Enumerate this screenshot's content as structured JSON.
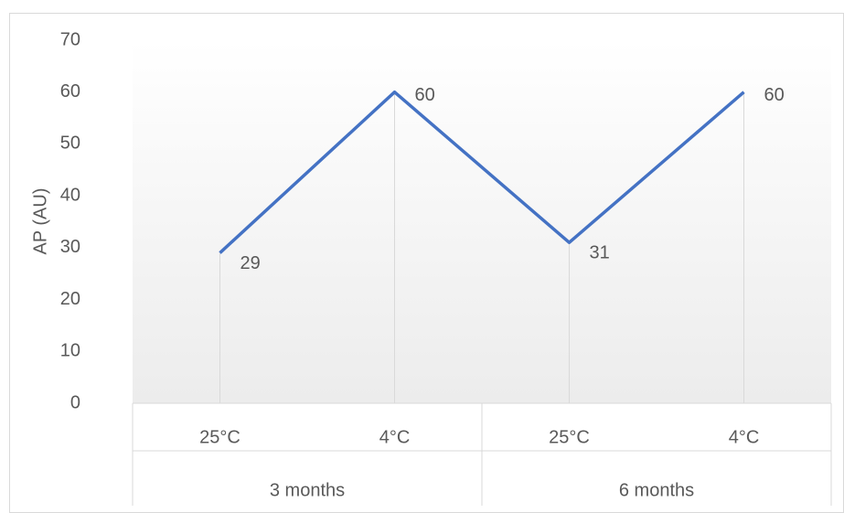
{
  "chart_data": {
    "type": "line",
    "y_label": "AP (AU)",
    "categories": [
      "25°C",
      "4°C",
      "25°C",
      "4°C"
    ],
    "groups": [
      "3 months",
      "6 months"
    ],
    "series": [
      {
        "name": "AP",
        "color": "#4472c4",
        "values": [
          29,
          60,
          31,
          60
        ]
      }
    ],
    "ylim": [
      0,
      70
    ],
    "yticks": [
      0,
      10,
      20,
      30,
      40,
      50,
      60,
      70
    ],
    "data_labels": true,
    "drop_lines": true
  }
}
